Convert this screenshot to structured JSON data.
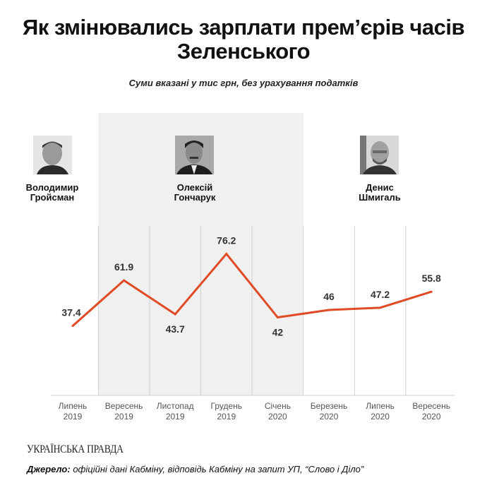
{
  "chart_data": {
    "type": "line",
    "title": "Як змінювались зарплати прем’єрів часів Зеленського",
    "subtitle": "Суми вказані у тис грн, без урахування податків",
    "categories": [
      {
        "month": "Липень",
        "year": "2019"
      },
      {
        "month": "Вересень",
        "year": "2019"
      },
      {
        "month": "Листопад",
        "year": "2019"
      },
      {
        "month": "Грудень",
        "year": "2019"
      },
      {
        "month": "Січень",
        "year": "2020"
      },
      {
        "month": "Березень",
        "year": "2020"
      },
      {
        "month": "Липень",
        "year": "2020"
      },
      {
        "month": "Вересень",
        "year": "2020"
      }
    ],
    "values": [
      37.4,
      61.9,
      43.7,
      76.2,
      42,
      46,
      47.2,
      55.8
    ],
    "data_labels": [
      "37.4",
      "61.9",
      "43.7",
      "76.2",
      "42",
      "46",
      "47.2",
      "55.8"
    ],
    "label_positions": [
      "above",
      "above",
      "below",
      "above",
      "below",
      "above",
      "above",
      "above"
    ],
    "ylim": [
      0,
      92
    ],
    "grid": "vertical",
    "line_color": "#e04a25",
    "shaded_period_color": "#f0f0f0",
    "periods": [
      {
        "name_line1": "Володимир",
        "name_line2": "Гройсман",
        "from": 0,
        "to": 0,
        "shaded": false
      },
      {
        "name_line1": "Олексій",
        "name_line2": "Гончарук",
        "from": 1,
        "to": 4,
        "shaded": true
      },
      {
        "name_line1": "Денис",
        "name_line2": "Шмигаль",
        "from": 5,
        "to": 7,
        "shaded": false
      }
    ]
  },
  "footer": {
    "brand": "УКРАЇНСЬКА ПРАВДА",
    "source_label": "Джерело:",
    "source_text": " офіційні дані Кабміну, відповідь Кабміну на запит УП, “Слово і Діло”"
  }
}
